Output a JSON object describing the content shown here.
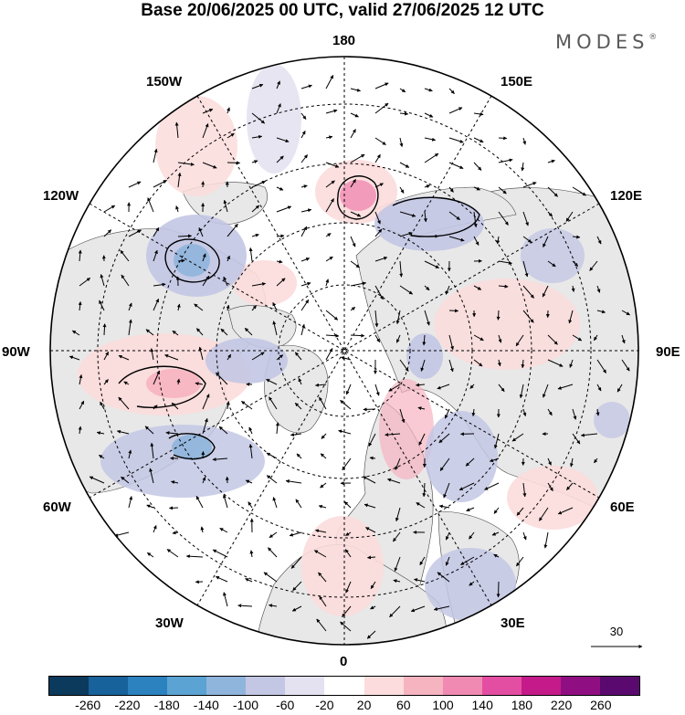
{
  "title": "Base 20/06/2025 00 UTC, valid 27/06/2025 12 UTC",
  "brand": "MODES",
  "brand_mark": "®",
  "meridian_labels": {
    "m180": "180",
    "m150w": "150W",
    "m150e": "150E",
    "m120w": "120W",
    "m120e": "120E",
    "m90w": "90W",
    "m90e": "90E",
    "m60w": "60W",
    "m60e": "60E",
    "m30w": "30W",
    "m30e": "30E",
    "m0": "0"
  },
  "reference_vector": {
    "label": "30"
  },
  "colorbar": {
    "colors": [
      "#0c3a5c",
      "#17629a",
      "#2b82be",
      "#5aa3d3",
      "#8fb5dc",
      "#c3c7e4",
      "#e4e2f1",
      "#ffffff",
      "#fcdcdc",
      "#f6b3c0",
      "#f08ab2",
      "#e34ea2",
      "#c51a8a",
      "#8f0f82",
      "#5a0a6e"
    ],
    "ticks": [
      "-260",
      "-220",
      "-180",
      "-140",
      "-100",
      "-60",
      "-20",
      "20",
      "60",
      "100",
      "140",
      "180",
      "220",
      "260"
    ]
  },
  "colors": {
    "land": "#e8e8e8",
    "ocean": "#ffffff",
    "grid": "#000000"
  },
  "icons": {
    "reference_arrow": "right-arrow-icon"
  }
}
